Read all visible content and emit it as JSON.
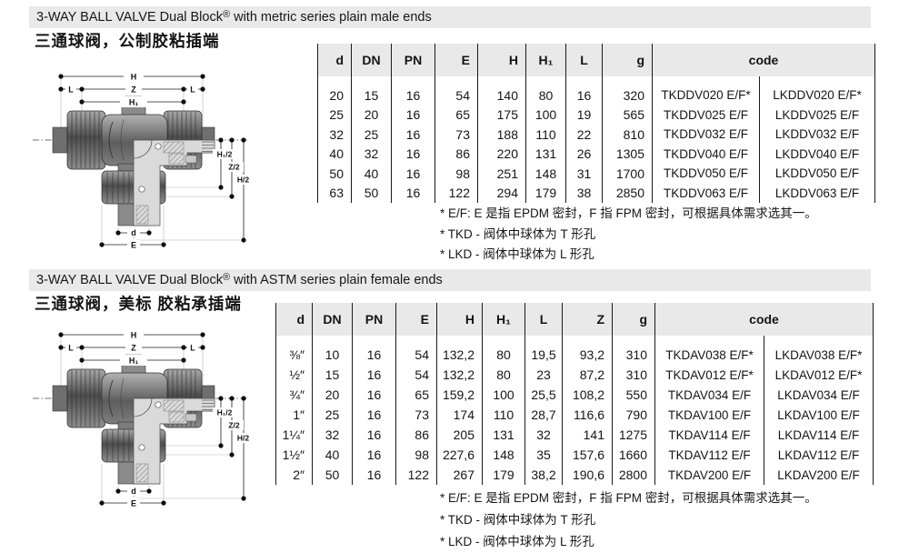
{
  "colors": {
    "band": "#e9e9e9",
    "line": "#191919",
    "text": "#141414"
  },
  "drawing": {
    "dim_labels": {
      "h": "H",
      "z": "Z",
      "h1": "H₁",
      "l": "L",
      "h1_half": "H₁/2",
      "z_half": "Z/2",
      "h_half": "H/2",
      "d": "d",
      "e": "E"
    }
  },
  "sections": [
    {
      "title_prefix": "3-WAY BALL VALVE Dual Block",
      "title_reg": "®",
      "title_suffix": " with metric series plain male ends",
      "subtitle_zh": "三通球阀，公制胶粘插端",
      "table": {
        "headers": [
          "d",
          "DN",
          "PN",
          "E",
          "H",
          "H₁",
          "L",
          "g",
          "code"
        ],
        "rows": [
          [
            "20",
            "15",
            "16",
            "54",
            "140",
            "80",
            "16",
            "320",
            "TKDDV020 E/F*",
            "LKDDV020 E/F*"
          ],
          [
            "25",
            "20",
            "16",
            "65",
            "175",
            "100",
            "19",
            "565",
            "TKDDV025 E/F",
            "LKDDV025 E/F"
          ],
          [
            "32",
            "25",
            "16",
            "73",
            "188",
            "110",
            "22",
            "810",
            "TKDDV032 E/F",
            "LKDDV032 E/F"
          ],
          [
            "40",
            "32",
            "16",
            "86",
            "220",
            "131",
            "26",
            "1305",
            "TKDDV040 E/F",
            "LKDDV040 E/F"
          ],
          [
            "50",
            "40",
            "16",
            "98",
            "251",
            "148",
            "31",
            "1700",
            "TKDDV050 E/F",
            "LKDDV050 E/F"
          ],
          [
            "63",
            "50",
            "16",
            "122",
            "294",
            "179",
            "38",
            "2850",
            "TKDDV063 E/F",
            "LKDDV063 E/F"
          ]
        ]
      },
      "footnotes": [
        "* E/F: E 是指 EPDM 密封，F 指 FPM 密封，可根据具体需求选其一。",
        "* TKD - 阀体中球体为 T 形孔",
        "* LKD - 阀体中球体为 L 形孔"
      ]
    },
    {
      "title_prefix": "3-WAY BALL VALVE Dual Block",
      "title_reg": "®",
      "title_suffix": " with ASTM series plain female ends",
      "subtitle_zh": "三通球阀，美标 胶粘承插端",
      "table": {
        "headers": [
          "d",
          "DN",
          "PN",
          "E",
          "H",
          "H₁",
          "L",
          "Z",
          "g",
          "code"
        ],
        "rows": [
          [
            "⅜″",
            "10",
            "16",
            "54",
            "132,2",
            "80",
            "19,5",
            "93,2",
            "310",
            "TKDAV038 E/F*",
            "LKDAV038 E/F*"
          ],
          [
            "½″",
            "15",
            "16",
            "54",
            "132,2",
            "80",
            "23",
            "87,2",
            "310",
            "TKDAV012 E/F*",
            "LKDAV012 E/F*"
          ],
          [
            "¾″",
            "20",
            "16",
            "65",
            "159,2",
            "100",
            "25,5",
            "108,2",
            "550",
            "TKDAV034 E/F",
            "LKDAV034 E/F"
          ],
          [
            "1″",
            "25",
            "16",
            "73",
            "174",
            "110",
            "28,7",
            "116,6",
            "790",
            "TKDAV100 E/F",
            "LKDAV100 E/F"
          ],
          [
            "1¼″",
            "32",
            "16",
            "86",
            "205",
            "131",
            "32",
            "141",
            "1275",
            "TKDAV114 E/F",
            "LKDAV114 E/F"
          ],
          [
            "1½″",
            "40",
            "16",
            "98",
            "227,6",
            "148",
            "35",
            "157,6",
            "1660",
            "TKDAV112 E/F",
            "LKDAV112 E/F"
          ],
          [
            "2″",
            "50",
            "16",
            "122",
            "267",
            "179",
            "38,2",
            "190,6",
            "2800",
            "TKDAV200 E/F",
            "LKDAV200 E/F"
          ]
        ]
      },
      "footnotes": [
        "* E/F: E 是指 EPDM 密封，F 指 FPM 密封，可根据具体需求选其一。",
        "* TKD - 阀体中球体为 T 形孔",
        "* LKD - 阀体中球体为 L 形孔"
      ]
    }
  ]
}
